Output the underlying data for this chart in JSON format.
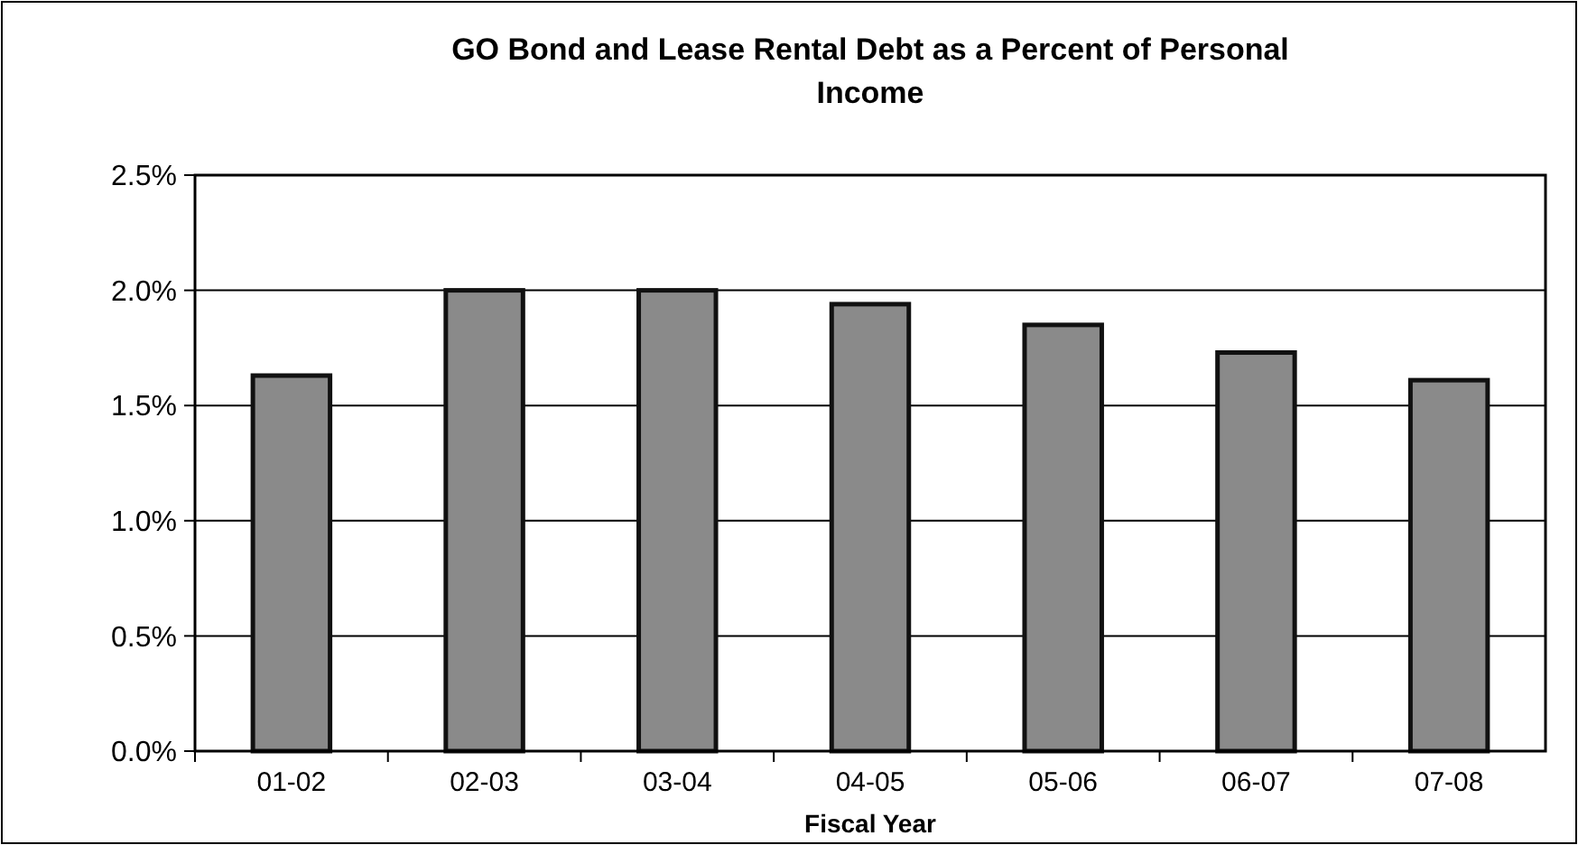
{
  "chart_data": {
    "type": "bar",
    "title": "GO Bond and Lease Rental Debt as a Percent of Personal Income",
    "xlabel": "Fiscal Year",
    "categories": [
      "01-02",
      "02-03",
      "03-04",
      "04-05",
      "05-06",
      "06-07",
      "07-08"
    ],
    "values": [
      1.63,
      2.0,
      2.0,
      1.94,
      1.85,
      1.73,
      1.61
    ],
    "color": "#8a8a8a",
    "ylim": [
      0,
      2.5
    ],
    "yticks": [
      {
        "value": 0,
        "label": "0.0%"
      },
      {
        "value": 0.5,
        "label": "0.5%"
      },
      {
        "value": 1,
        "label": "1.0%"
      },
      {
        "value": 1.5,
        "label": "1.5%"
      },
      {
        "value": 2,
        "label": "2.0%"
      },
      {
        "value": 2.5,
        "label": "2.5%"
      }
    ],
    "grid": "y"
  }
}
